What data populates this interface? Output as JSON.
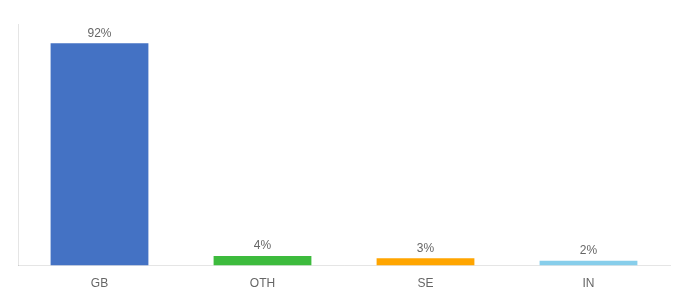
{
  "chart_data": {
    "type": "bar",
    "categories": [
      "GB",
      "OTH",
      "SE",
      "IN"
    ],
    "values": [
      92,
      4,
      3,
      2
    ],
    "value_labels": [
      "92%",
      "4%",
      "3%",
      "2%"
    ],
    "colors": [
      "#4472c4",
      "#3dbb3d",
      "#ffa500",
      "#87ceeb"
    ],
    "ylim": [
      0,
      100
    ],
    "grid": false,
    "data_labels": true,
    "tick_labels": "x"
  }
}
